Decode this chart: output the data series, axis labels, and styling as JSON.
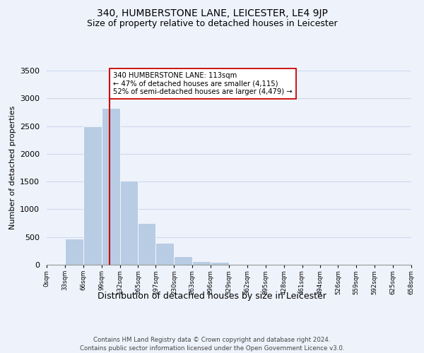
{
  "title": "340, HUMBERSTONE LANE, LEICESTER, LE4 9JP",
  "subtitle": "Size of property relative to detached houses in Leicester",
  "xlabel": "Distribution of detached houses by size in Leicester",
  "ylabel": "Number of detached properties",
  "bar_left_edges": [
    0,
    33,
    66,
    99,
    132,
    165,
    197,
    230,
    263,
    296,
    329,
    362,
    395,
    428,
    461,
    494,
    526,
    559,
    592,
    625
  ],
  "bar_widths": [
    33,
    33,
    33,
    33,
    33,
    32,
    33,
    33,
    33,
    33,
    33,
    33,
    33,
    33,
    33,
    32,
    33,
    33,
    33,
    33
  ],
  "bar_heights": [
    0,
    470,
    2500,
    2830,
    1510,
    750,
    390,
    150,
    70,
    55,
    0,
    0,
    0,
    0,
    0,
    0,
    0,
    0,
    0,
    0
  ],
  "tick_labels": [
    "0sqm",
    "33sqm",
    "66sqm",
    "99sqm",
    "132sqm",
    "165sqm",
    "197sqm",
    "230sqm",
    "263sqm",
    "296sqm",
    "329sqm",
    "362sqm",
    "395sqm",
    "428sqm",
    "461sqm",
    "494sqm",
    "526sqm",
    "559sqm",
    "592sqm",
    "625sqm",
    "658sqm"
  ],
  "bar_color": "#b8cce4",
  "grid_color": "#ccd9ee",
  "vline_x": 113,
  "vline_color": "#cc0000",
  "annotation_text": "340 HUMBERSTONE LANE: 113sqm\n← 47% of detached houses are smaller (4,115)\n52% of semi-detached houses are larger (4,479) →",
  "annotation_box_color": "#ffffff",
  "annotation_box_edge": "#cc0000",
  "ylim": [
    0,
    3500
  ],
  "yticks": [
    0,
    500,
    1000,
    1500,
    2000,
    2500,
    3000,
    3500
  ],
  "footer_line1": "Contains HM Land Registry data © Crown copyright and database right 2024.",
  "footer_line2": "Contains public sector information licensed under the Open Government Licence v3.0.",
  "bg_color": "#eef2fb"
}
